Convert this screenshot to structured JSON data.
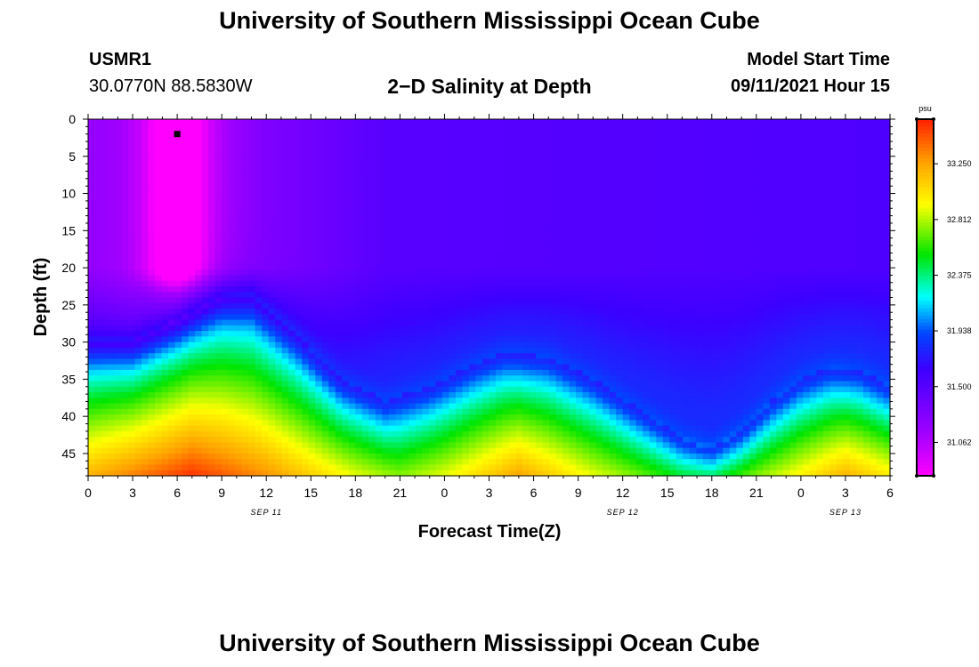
{
  "page": {
    "title_top": "University of Southern Mississippi Ocean Cube",
    "title_bottom": "University of Southern Mississippi Ocean Cube",
    "station_id": "USMR1",
    "station_coords": "30.0770N  88.5830W",
    "plot_title": "2−D Salinity at Depth",
    "model_label": "Model Start Time",
    "model_time": "09/11/2021 Hour 15"
  },
  "chart_data": {
    "type": "heatmap",
    "title": "2-D Salinity at Depth",
    "xlabel": "Forecast Time(Z)",
    "ylabel": "Depth (ft)",
    "x_range_hours": [
      0,
      54
    ],
    "x_ticks": [
      {
        "hour": 0,
        "label": "0"
      },
      {
        "hour": 3,
        "label": "3"
      },
      {
        "hour": 6,
        "label": "6"
      },
      {
        "hour": 9,
        "label": "9"
      },
      {
        "hour": 12,
        "label": "12"
      },
      {
        "hour": 15,
        "label": "15"
      },
      {
        "hour": 18,
        "label": "18"
      },
      {
        "hour": 21,
        "label": "21"
      },
      {
        "hour": 24,
        "label": "0"
      },
      {
        "hour": 27,
        "label": "3"
      },
      {
        "hour": 30,
        "label": "6"
      },
      {
        "hour": 33,
        "label": "9"
      },
      {
        "hour": 36,
        "label": "12"
      },
      {
        "hour": 39,
        "label": "15"
      },
      {
        "hour": 42,
        "label": "18"
      },
      {
        "hour": 45,
        "label": "21"
      },
      {
        "hour": 48,
        "label": "0"
      },
      {
        "hour": 51,
        "label": "3"
      },
      {
        "hour": 54,
        "label": "6"
      }
    ],
    "date_labels": [
      {
        "hour": 12,
        "label": "SEP 11"
      },
      {
        "hour": 36,
        "label": "SEP 12"
      },
      {
        "hour": 51,
        "label": "SEP 13"
      }
    ],
    "y_range_ft": [
      0,
      48
    ],
    "y_ticks": [
      0,
      5,
      10,
      15,
      20,
      25,
      30,
      35,
      40,
      45
    ],
    "colorbar": {
      "unit": "psu",
      "range": [
        30.8,
        33.6
      ],
      "ticks": [
        "33.250",
        "32.812",
        "32.375",
        "31.938",
        "31.500",
        "31.062"
      ],
      "tick_values": [
        33.25,
        32.812,
        32.375,
        31.938,
        31.5,
        31.062
      ]
    },
    "marker": {
      "hour": 6,
      "depth_ft": 2
    },
    "halocline_depth_ft": [
      {
        "hour": 0,
        "depth": 30
      },
      {
        "hour": 3,
        "depth": 30
      },
      {
        "hour": 6,
        "depth": 27
      },
      {
        "hour": 9,
        "depth": 24
      },
      {
        "hour": 11,
        "depth": 24
      },
      {
        "hour": 14,
        "depth": 29
      },
      {
        "hour": 17,
        "depth": 35
      },
      {
        "hour": 20,
        "depth": 38
      },
      {
        "hour": 23,
        "depth": 36
      },
      {
        "hour": 26,
        "depth": 33
      },
      {
        "hour": 28,
        "depth": 31.5
      },
      {
        "hour": 31,
        "depth": 32
      },
      {
        "hour": 34,
        "depth": 35
      },
      {
        "hour": 37,
        "depth": 39
      },
      {
        "hour": 40,
        "depth": 43
      },
      {
        "hour": 42,
        "depth": 44.5
      },
      {
        "hour": 44,
        "depth": 42
      },
      {
        "hour": 46,
        "depth": 38
      },
      {
        "hour": 48,
        "depth": 35
      },
      {
        "hour": 50,
        "depth": 33.5
      },
      {
        "hour": 52,
        "depth": 34
      },
      {
        "hour": 54,
        "depth": 36
      }
    ],
    "surface_salinity": [
      {
        "hour": 0,
        "value": 31.2
      },
      {
        "hour": 4,
        "value": 31.1
      },
      {
        "hour": 6,
        "value": 30.95
      },
      {
        "hour": 8,
        "value": 31.1
      },
      {
        "hour": 12,
        "value": 31.3
      },
      {
        "hour": 20,
        "value": 31.5
      },
      {
        "hour": 54,
        "value": 31.55
      }
    ],
    "bottom_salinity": [
      {
        "hour": 0,
        "value": 33.2
      },
      {
        "hour": 7,
        "value": 33.55
      },
      {
        "hour": 12,
        "value": 33.3
      },
      {
        "hour": 18,
        "value": 32.9
      },
      {
        "hour": 21,
        "value": 32.75
      },
      {
        "hour": 24,
        "value": 32.9
      },
      {
        "hour": 29,
        "value": 33.25
      },
      {
        "hour": 34,
        "value": 32.9
      },
      {
        "hour": 40,
        "value": 32.55
      },
      {
        "hour": 42,
        "value": 32.55
      },
      {
        "hour": 47,
        "value": 32.9
      },
      {
        "hour": 51,
        "value": 33.2
      },
      {
        "hour": 54,
        "value": 33.0
      }
    ]
  }
}
